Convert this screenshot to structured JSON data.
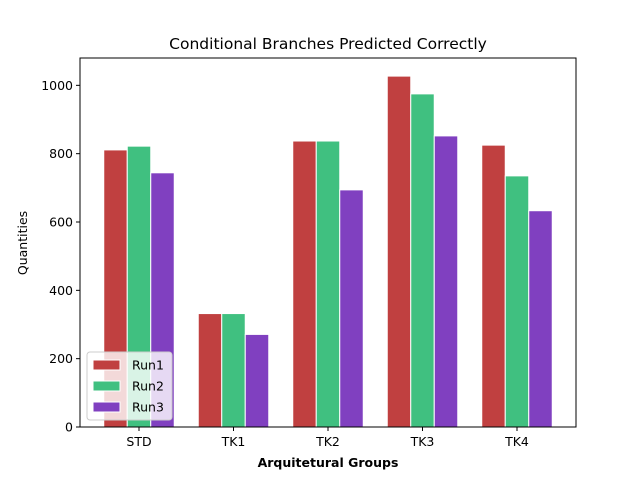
{
  "chart_data": {
    "type": "bar",
    "title": "Conditional Branches Predicted Correctly",
    "xlabel": "Arquitetural Groups",
    "ylabel": "Quantities",
    "categories": [
      "STD",
      "TK1",
      "TK2",
      "TK3",
      "TK4"
    ],
    "series": [
      {
        "name": "Run1",
        "color": "#c04040",
        "values": [
          811,
          332,
          837,
          1027,
          825
        ]
      },
      {
        "name": "Run2",
        "color": "#40c080",
        "values": [
          822,
          332,
          837,
          975,
          735
        ]
      },
      {
        "name": "Run3",
        "color": "#8040c0",
        "values": [
          744,
          271,
          694,
          852,
          633
        ]
      }
    ],
    "ylim": [
      0,
      1080
    ],
    "yticks": [
      0,
      200,
      400,
      600,
      800,
      1000
    ],
    "grid": false,
    "legend_position": "lower-left"
  }
}
